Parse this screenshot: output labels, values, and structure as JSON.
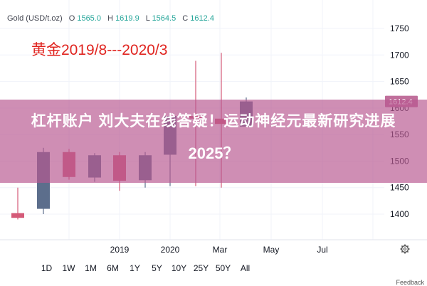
{
  "legend": {
    "symbol": "Gold (USD/t.oz)",
    "o_label": "O",
    "o_value": "1565.0",
    "h_label": "H",
    "h_value": "1619.9",
    "l_label": "L",
    "l_value": "1564.5",
    "c_label": "C",
    "c_value": "1612.4"
  },
  "annotation": "黄金2019/8---2020/3",
  "banner": {
    "line1": "杠杆账户 刘大夫在线答疑！运动神经元最新研究进展",
    "line2": "2025？"
  },
  "timeframes": [
    "1D",
    "1W",
    "1M",
    "6M",
    "1Y",
    "5Y",
    "10Y",
    "25Y",
    "50Y",
    "All"
  ],
  "feedback": "Feedback",
  "colors": {
    "up": "#5c6e8c",
    "down": "#d45a78",
    "accent_green": "#26a69a",
    "price_tag": "#c06f9b"
  },
  "chart_data": {
    "type": "candlestick",
    "y_ticks": [
      1400,
      1450,
      1500,
      1550,
      1600,
      1650,
      1700,
      1750
    ],
    "ylim": [
      1380,
      1775
    ],
    "x_ticks": [
      "2019",
      "2020",
      "Mar",
      "May",
      "Jul"
    ],
    "last_price_label": "1612.4",
    "candles": [
      {
        "open": 1402,
        "high": 1450,
        "low": 1390,
        "close": 1393
      },
      {
        "open": 1410,
        "high": 1525,
        "low": 1400,
        "close": 1517
      },
      {
        "open": 1517,
        "high": 1523,
        "low": 1465,
        "close": 1470
      },
      {
        "open": 1469,
        "high": 1515,
        "low": 1461,
        "close": 1511
      },
      {
        "open": 1511,
        "high": 1517,
        "low": 1444,
        "close": 1463
      },
      {
        "open": 1464,
        "high": 1517,
        "low": 1450,
        "close": 1511
      },
      {
        "open": 1512,
        "high": 1590,
        "low": 1453,
        "close": 1585
      },
      {
        "open": 1585,
        "high": 1689,
        "low": 1453,
        "close": 1580
      },
      {
        "open": 1580,
        "high": 1704,
        "low": 1450,
        "close": 1570
      },
      {
        "open": 1565,
        "high": 1619.9,
        "low": 1564.5,
        "close": 1612.4
      }
    ]
  }
}
